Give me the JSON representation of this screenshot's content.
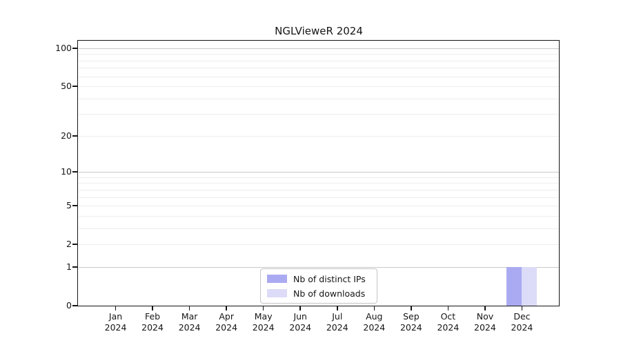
{
  "title": "NGLVieweR 2024",
  "chart_data": {
    "type": "bar",
    "title": "NGLVieweR 2024",
    "categories": [
      "Jan 2024",
      "Feb 2024",
      "Mar 2024",
      "Apr 2024",
      "May 2024",
      "Jun 2024",
      "Jul 2024",
      "Aug 2024",
      "Sep 2024",
      "Oct 2024",
      "Nov 2024",
      "Dec 2024"
    ],
    "x_months": [
      "Jan",
      "Feb",
      "Mar",
      "Apr",
      "May",
      "Jun",
      "Jul",
      "Aug",
      "Sep",
      "Oct",
      "Nov",
      "Dec"
    ],
    "x_year": "2024",
    "series": [
      {
        "name": "Nb of distinct IPs",
        "color": "#aaaaf2",
        "values": [
          0,
          0,
          0,
          0,
          0,
          0,
          0,
          0,
          0,
          0,
          0,
          1
        ]
      },
      {
        "name": "Nb of downloads",
        "color": "#dcdcf8",
        "values": [
          0,
          0,
          0,
          0,
          0,
          0,
          0,
          0,
          0,
          0,
          0,
          1
        ]
      }
    ],
    "y_scale": "log1p",
    "y_ticks": [
      0,
      1,
      2,
      5,
      10,
      20,
      50,
      100
    ],
    "y_minor_gridlines": [
      3,
      4,
      6,
      7,
      8,
      9,
      30,
      40,
      60,
      70,
      80,
      90
    ],
    "ylim": [
      0,
      113
    ],
    "grid": "horizontal",
    "legend_position": "lower center",
    "colors": {
      "grid_decade": "#c8c8c8",
      "grid_light": "#ededed",
      "spine": "#141414",
      "background": "#ffffff"
    }
  },
  "legend": {
    "items": [
      {
        "label": "Nb of distinct IPs"
      },
      {
        "label": "Nb of downloads"
      }
    ]
  }
}
